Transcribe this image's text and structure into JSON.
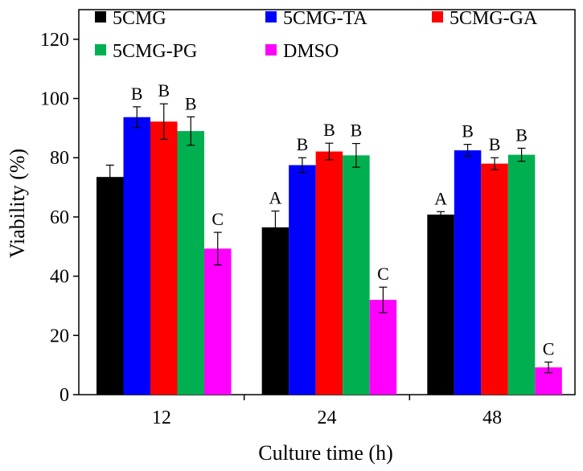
{
  "chart_data": {
    "type": "bar",
    "title": "",
    "xlabel": "Culture time (h)",
    "ylabel": "Viability (%)",
    "ylim": [
      0,
      130
    ],
    "yticks": [
      0,
      20,
      40,
      60,
      80,
      100,
      120
    ],
    "categories": [
      "12",
      "24",
      "48"
    ],
    "legend_position": "top",
    "series": [
      {
        "name": "5CMG",
        "color": "#000000",
        "values": [
          73.5,
          56.5,
          60.8
        ],
        "errors": [
          4.0,
          5.5,
          1.0
        ],
        "labels": [
          "",
          "A",
          "A"
        ]
      },
      {
        "name": "5CMG-TA",
        "color": "#0000ff",
        "values": [
          93.7,
          77.5,
          82.5
        ],
        "errors": [
          3.5,
          2.5,
          2.0
        ],
        "labels": [
          "B",
          "B",
          "B"
        ]
      },
      {
        "name": "5CMG-GA",
        "color": "#ff0000",
        "values": [
          92.2,
          82.1,
          78.0
        ],
        "errors": [
          6.0,
          2.8,
          2.0
        ],
        "labels": [
          "B",
          "B",
          "B"
        ]
      },
      {
        "name": "5CMG-PG",
        "color": "#00b050",
        "values": [
          89.0,
          80.8,
          81.0
        ],
        "errors": [
          4.8,
          4.0,
          2.2
        ],
        "labels": [
          "B",
          "B",
          "B"
        ]
      },
      {
        "name": "DMSO",
        "color": "#ff00ff",
        "values": [
          49.3,
          32.0,
          9.2
        ],
        "errors": [
          5.5,
          4.3,
          1.8
        ],
        "labels": [
          "C",
          "C",
          "C"
        ]
      }
    ]
  }
}
